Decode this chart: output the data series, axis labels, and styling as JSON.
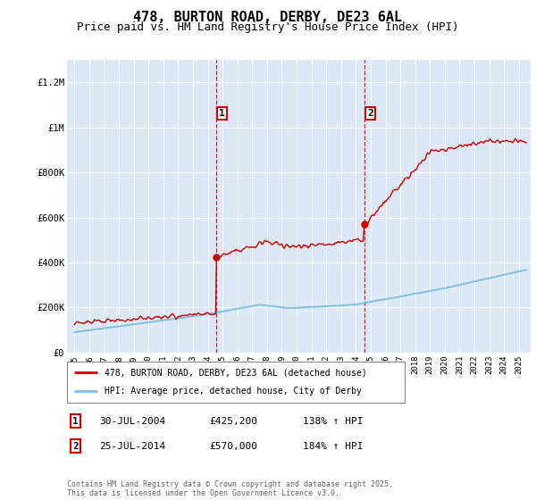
{
  "title": "478, BURTON ROAD, DERBY, DE23 6AL",
  "subtitle": "Price paid vs. HM Land Registry's House Price Index (HPI)",
  "ylabel_ticks": [
    "£0",
    "£200K",
    "£400K",
    "£600K",
    "£800K",
    "£1M",
    "£1.2M"
  ],
  "ytick_values": [
    0,
    200000,
    400000,
    600000,
    800000,
    1000000,
    1200000
  ],
  "ylim": [
    0,
    1300000
  ],
  "xlim_start": 1994.5,
  "xlim_end": 2025.8,
  "bg_color": "#dce8f5",
  "red_line_color": "#cc0000",
  "blue_line_color": "#7fbfdf",
  "dashed_line_color": "#cc0000",
  "marker1_x": 2004.58,
  "marker1_y": 425200,
  "marker2_x": 2014.58,
  "marker2_y": 570000,
  "legend_red": "478, BURTON ROAD, DERBY, DE23 6AL (detached house)",
  "legend_blue": "HPI: Average price, detached house, City of Derby",
  "table_row1": [
    "1",
    "30-JUL-2004",
    "£425,200",
    "138% ↑ HPI"
  ],
  "table_row2": [
    "2",
    "25-JUL-2014",
    "£570,000",
    "184% ↑ HPI"
  ],
  "footer": "Contains HM Land Registry data © Crown copyright and database right 2025.\nThis data is licensed under the Open Government Licence v3.0.",
  "grid_color": "#ffffff",
  "title_fontsize": 11,
  "subtitle_fontsize": 9,
  "tick_fontsize": 7.5
}
